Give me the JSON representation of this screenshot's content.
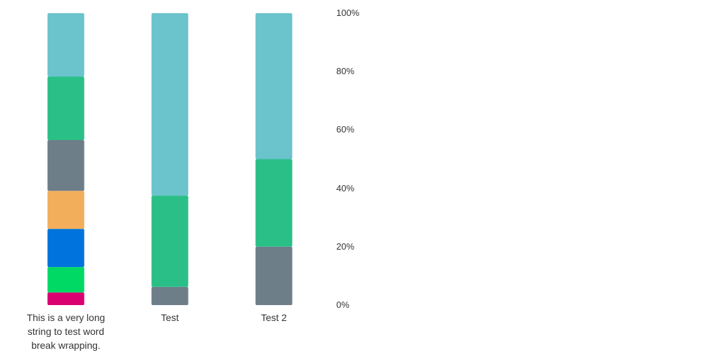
{
  "chart_data": {
    "type": "bar",
    "stacked": true,
    "normalized": true,
    "categories": [
      "This is a very long string to test word break wrapping.",
      "Test",
      "Test 2"
    ],
    "series": [
      {
        "color": "#db0072",
        "values": [
          1,
          0,
          0
        ]
      },
      {
        "color": "#00d964",
        "values": [
          2,
          0,
          0
        ]
      },
      {
        "color": "#0073dc",
        "values": [
          3,
          0,
          0
        ]
      },
      {
        "color": "#f2ae5b",
        "values": [
          3,
          0,
          0
        ]
      },
      {
        "color": "#6e7e89",
        "values": [
          4,
          1,
          2
        ]
      },
      {
        "color": "#2abf87",
        "values": [
          5,
          5,
          3
        ]
      },
      {
        "color": "#6bc3cc",
        "values": [
          5,
          10,
          5
        ]
      }
    ],
    "y_ticks": [
      "0%",
      "20%",
      "40%",
      "60%",
      "80%",
      "100%"
    ],
    "ylim": [
      0,
      100
    ],
    "y_axis_position": "right",
    "grid": false,
    "legend": "none"
  }
}
